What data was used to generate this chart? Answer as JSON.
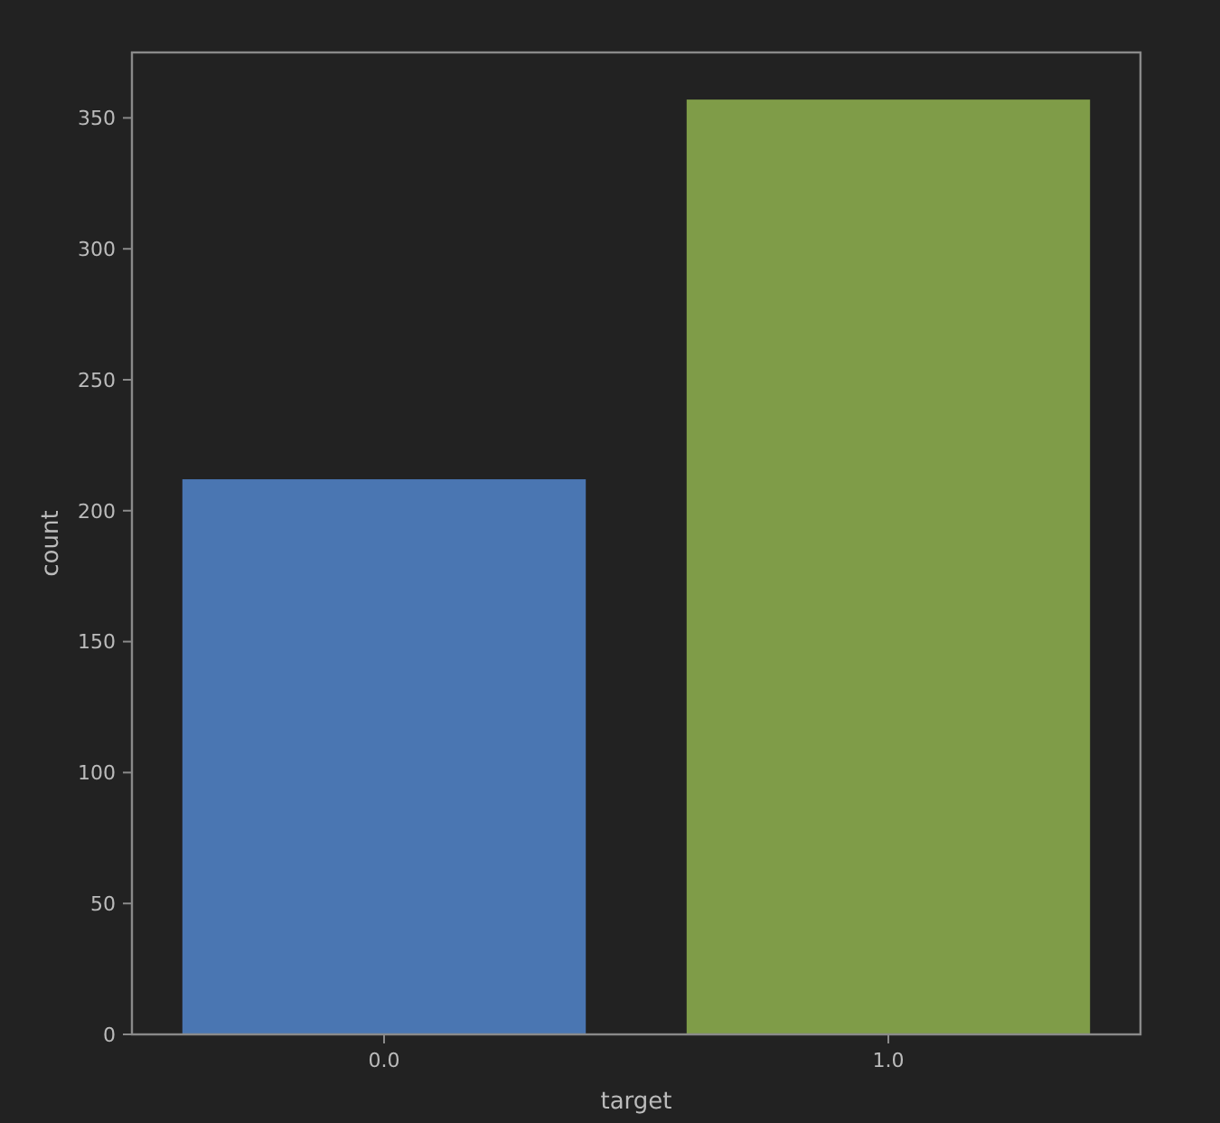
{
  "chart_data": {
    "type": "bar",
    "xlabel": "target",
    "ylabel": "count",
    "categories": [
      "0.0",
      "1.0"
    ],
    "values": [
      212,
      357
    ],
    "colors": [
      "#4a76b2",
      "#7f9c48"
    ],
    "ylim": [
      0,
      375
    ],
    "yticks": [
      0,
      50,
      100,
      150,
      200,
      250,
      300,
      350
    ],
    "grid": false
  }
}
